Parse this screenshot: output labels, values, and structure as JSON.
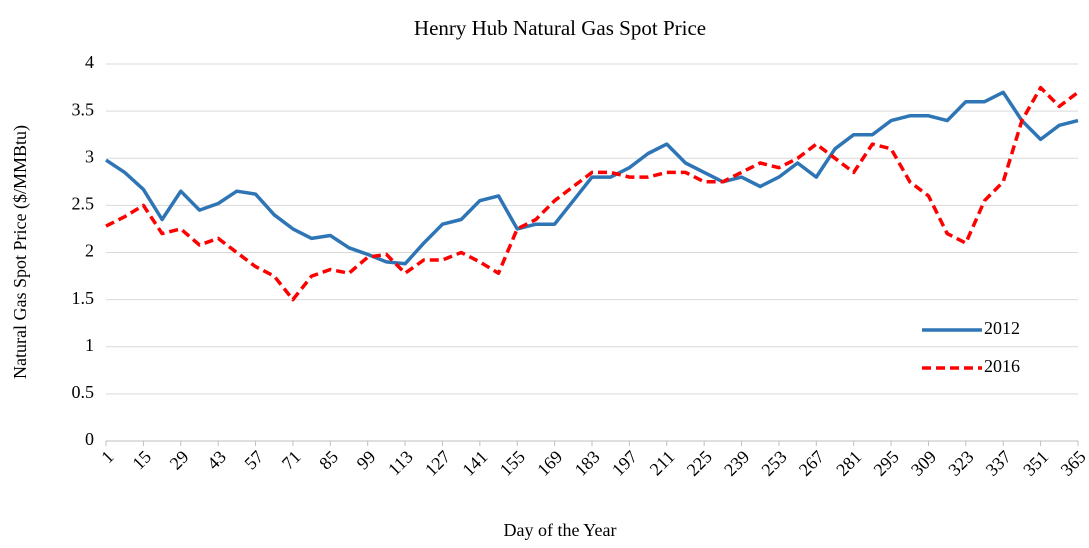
{
  "chart_data": {
    "type": "line",
    "title": "Henry Hub Natural Gas Spot Price",
    "x_label": "Day of the Year",
    "y_label": "Natural Gas Spot Price ($/MMBtu)",
    "x": [
      1,
      8,
      15,
      22,
      29,
      36,
      43,
      50,
      57,
      64,
      71,
      78,
      85,
      92,
      99,
      106,
      113,
      120,
      127,
      134,
      141,
      148,
      155,
      162,
      169,
      176,
      183,
      190,
      197,
      204,
      211,
      218,
      225,
      232,
      239,
      246,
      253,
      260,
      267,
      274,
      281,
      288,
      295,
      302,
      309,
      316,
      323,
      330,
      337,
      344,
      351,
      358,
      365
    ],
    "series": [
      {
        "name": "2012",
        "color": "#2e75b6",
        "line_style": "solid",
        "values": [
          2.98,
          2.85,
          2.67,
          2.35,
          2.65,
          2.45,
          2.52,
          2.65,
          2.62,
          2.4,
          2.25,
          2.15,
          2.18,
          2.05,
          1.98,
          1.9,
          1.88,
          2.1,
          2.3,
          2.35,
          2.55,
          2.6,
          2.25,
          2.3,
          2.3,
          2.55,
          2.8,
          2.8,
          2.9,
          3.05,
          3.15,
          2.95,
          2.85,
          2.75,
          2.8,
          2.7,
          2.8,
          2.95,
          2.8,
          3.1,
          3.25,
          3.25,
          3.4,
          3.45,
          3.45,
          3.4,
          3.6,
          3.6,
          3.7,
          3.4,
          3.2,
          3.35,
          3.4
        ]
      },
      {
        "name": "2016",
        "color": "#ff0000",
        "line_style": "dashed",
        "values": [
          2.28,
          2.38,
          2.5,
          2.2,
          2.25,
          2.08,
          2.15,
          2.0,
          1.85,
          1.75,
          1.5,
          1.75,
          1.82,
          1.78,
          1.95,
          1.98,
          1.78,
          1.92,
          1.92,
          2.0,
          1.9,
          1.78,
          2.25,
          2.35,
          2.55,
          2.7,
          2.85,
          2.85,
          2.8,
          2.8,
          2.85,
          2.85,
          2.75,
          2.75,
          2.85,
          2.95,
          2.9,
          3.0,
          3.15,
          3.0,
          2.85,
          3.15,
          3.1,
          2.75,
          2.6,
          2.2,
          2.1,
          2.55,
          2.75,
          3.4,
          3.75,
          3.55,
          3.7
        ]
      }
    ],
    "xlim": [
      1,
      365
    ],
    "xticks": [
      1,
      15,
      29,
      43,
      57,
      71,
      85,
      99,
      113,
      127,
      141,
      155,
      169,
      183,
      197,
      211,
      225,
      239,
      253,
      267,
      281,
      295,
      309,
      323,
      337,
      351,
      365
    ],
    "ylim": [
      0,
      4
    ],
    "yticks": [
      0,
      {
        "value": 0.5,
        "label": "0.5"
      },
      1,
      {
        "value": 1.5,
        "label": "1.5"
      },
      2,
      {
        "value": 2.5,
        "label": "2.5"
      },
      3,
      {
        "value": 3.5,
        "label": "3.5"
      },
      4
    ],
    "grid": true,
    "legend": "right"
  }
}
